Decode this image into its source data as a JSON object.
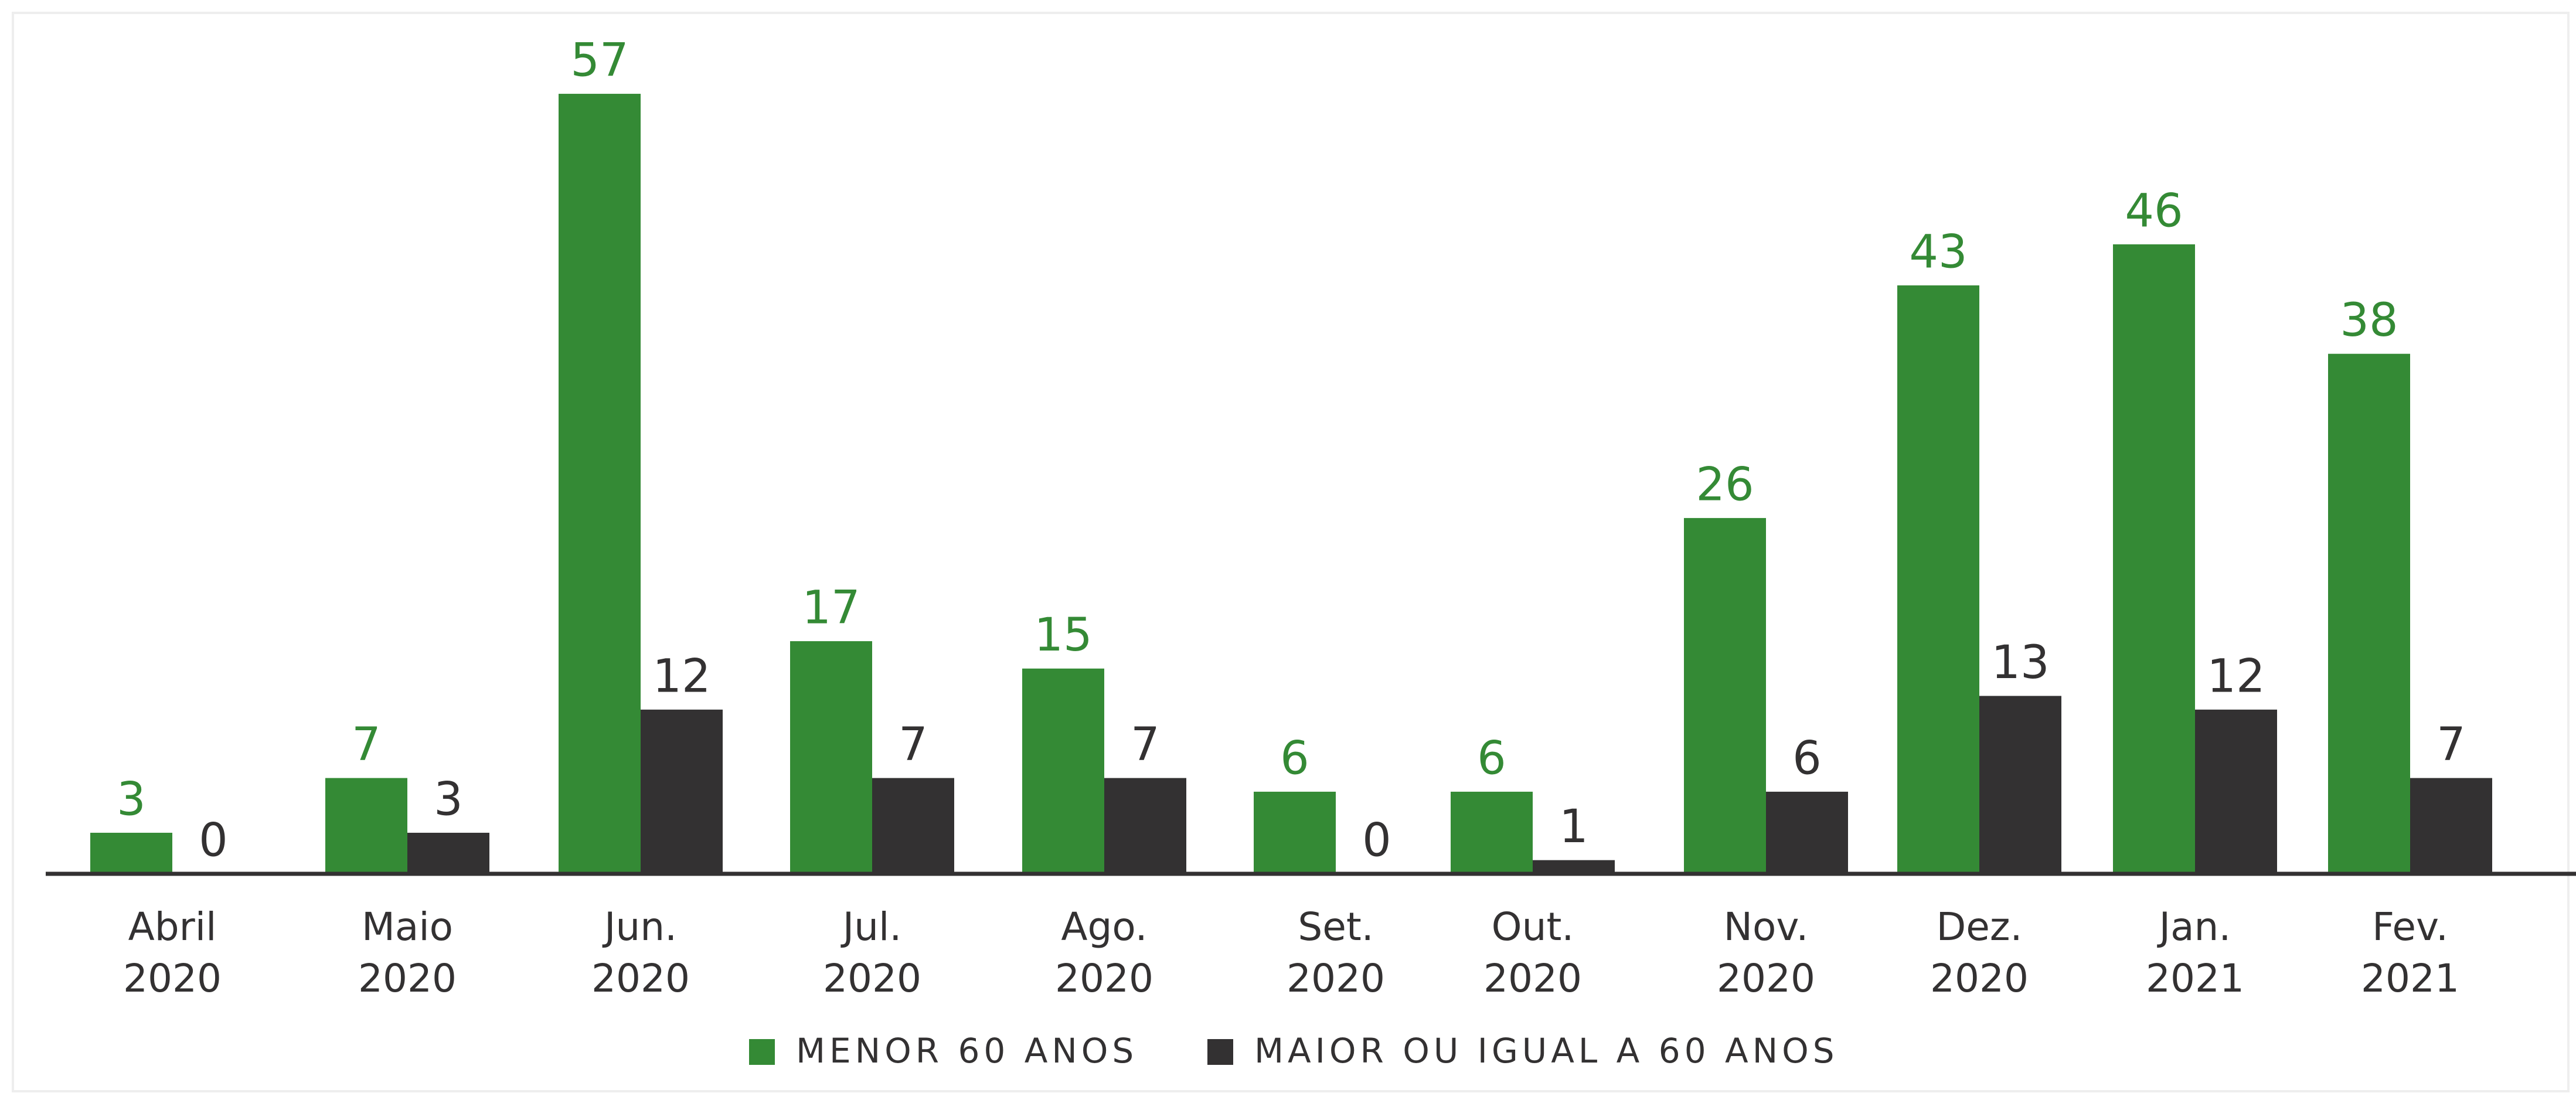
{
  "chart_data": {
    "type": "bar",
    "categories": [
      "Abril 2020",
      "Maio 2020",
      "Jun. 2020",
      "Jul. 2020",
      "Ago. 2020",
      "Set. 2020",
      "Out. 2020",
      "Nov. 2020",
      "Dez. 2020",
      "Jan. 2021",
      "Fev. 2021"
    ],
    "series": [
      {
        "name": "MENOR 60 ANOS",
        "color": "#348a35",
        "values": [
          3,
          7,
          57,
          17,
          15,
          6,
          6,
          26,
          43,
          46,
          38
        ]
      },
      {
        "name": "MAIOR OU IGUAL A 60 ANOS",
        "color": "#333132",
        "values": [
          0,
          3,
          12,
          7,
          7,
          0,
          1,
          6,
          13,
          12,
          7
        ]
      }
    ]
  }
}
